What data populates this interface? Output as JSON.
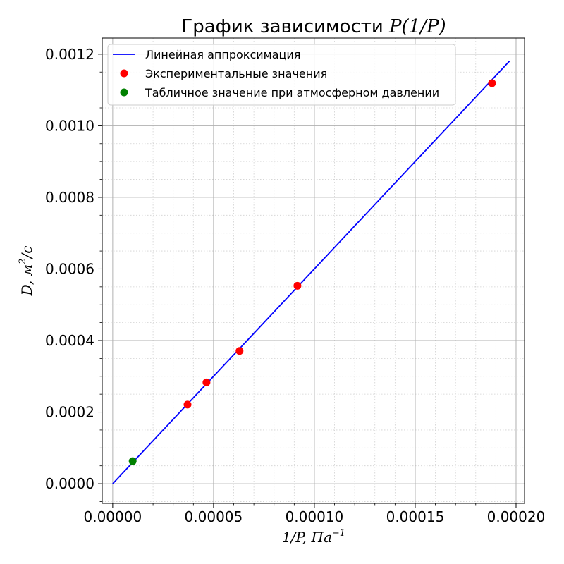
{
  "chart_data": {
    "type": "scatter",
    "title_prefix": "График зависимости ",
    "title_math": "P(1/P)",
    "xlabel": "1/P, Па",
    "xlabel_sup": "−1",
    "ylabel": "D, м",
    "ylabel_sup": "2",
    "ylabel_suffix": "/с",
    "xlim": [
      -5.2e-06,
      0.0002042
    ],
    "ylim": [
      -5.5e-05,
      0.001245
    ],
    "x_ticks": [
      0,
      5e-05,
      0.0001,
      0.00015,
      0.0002
    ],
    "x_tick_labels": [
      "0.00000",
      "0.00005",
      "0.00010",
      "0.00015",
      "0.00020"
    ],
    "y_ticks": [
      0,
      0.0002,
      0.0004,
      0.0006,
      0.0008,
      0.001,
      0.0012
    ],
    "y_tick_labels": [
      "0.0000",
      "0.0002",
      "0.0004",
      "0.0006",
      "0.0008",
      "0.0010",
      "0.0012"
    ],
    "grid": "major solid, minor dotted",
    "legend_position": "upper-left",
    "series": [
      {
        "name": "Линейная аппроксимация",
        "kind": "line",
        "color": "#0000ff",
        "x": [
          0,
          0.0001968
        ],
        "y": [
          0,
          0.001181
        ]
      },
      {
        "name": "Экспериментальные значения",
        "kind": "scatter",
        "color": "#ff0000",
        "x": [
          3.71e-05,
          4.65e-05,
          6.29e-05,
          9.16e-05,
          0.0001881
        ],
        "y": [
          0.000221,
          0.000283,
          0.000371,
          0.000553,
          0.001119
        ]
      },
      {
        "name": "Табличное значение при атмосферном давлении",
        "kind": "scatter",
        "color": "#008000",
        "x": [
          9.9e-06
        ],
        "y": [
          6.3e-05
        ]
      }
    ]
  }
}
